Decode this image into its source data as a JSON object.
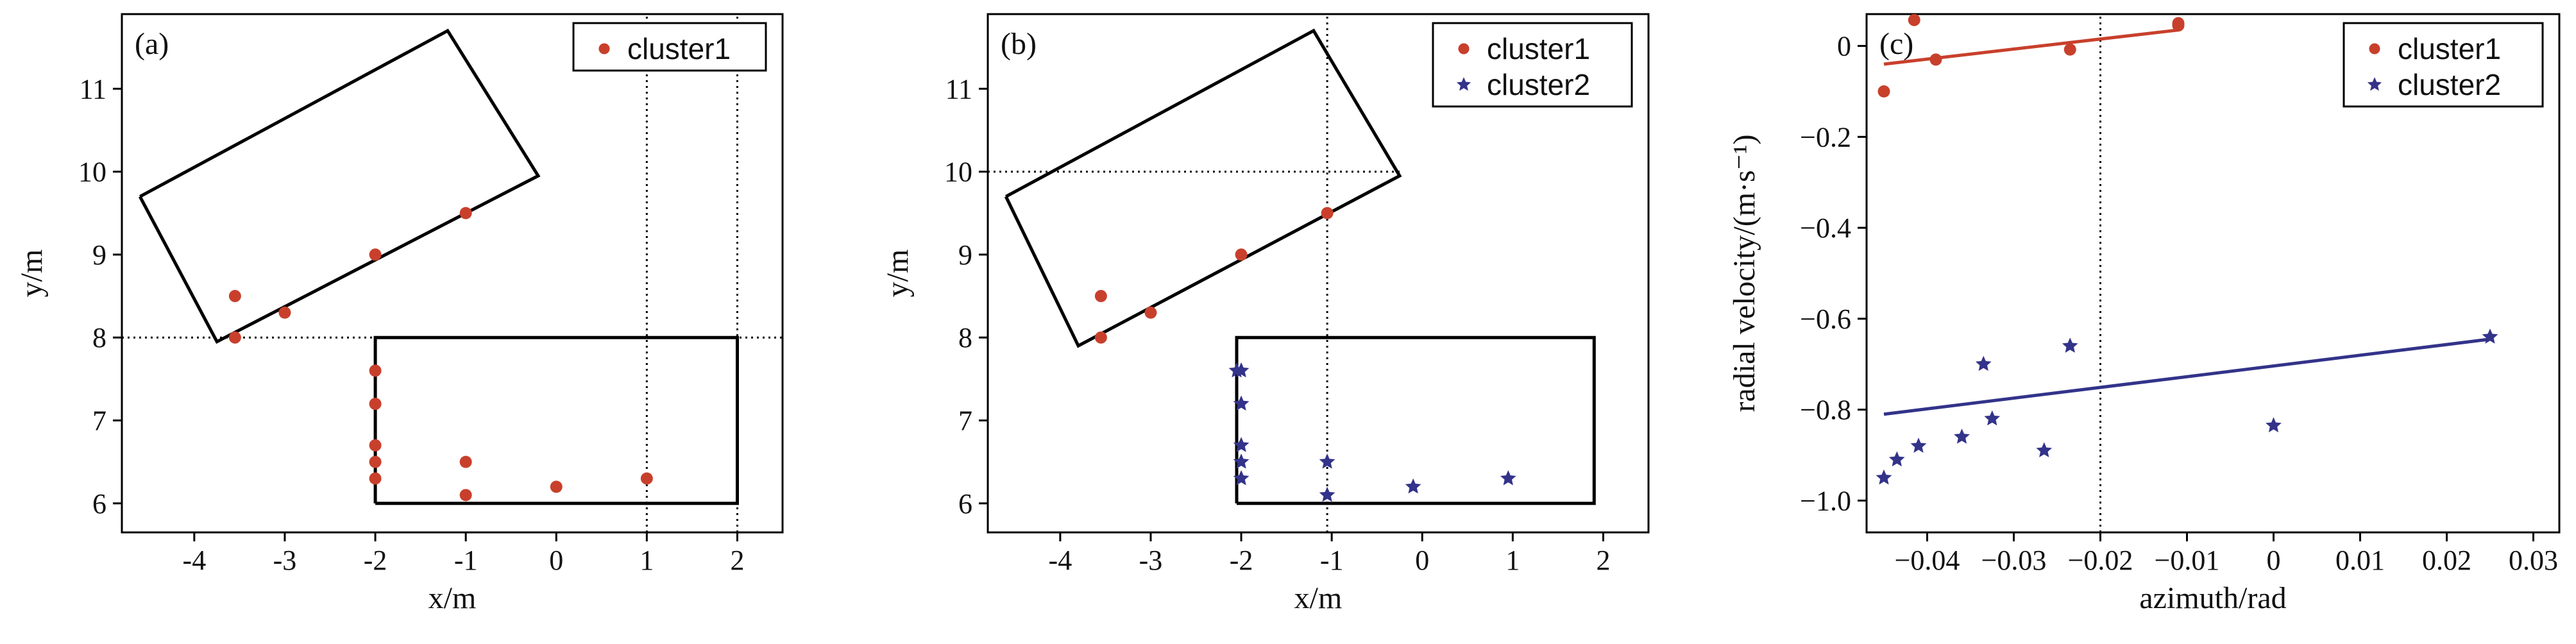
{
  "colors": {
    "cluster1": "#c8402c",
    "cluster2": "#33338a",
    "frame": "#000000",
    "background": "#ffffff"
  },
  "chart_data": [
    {
      "panel_label": "(a)",
      "type": "scatter",
      "xlabel": "x/m",
      "ylabel": "y/m",
      "xlim": [
        -4.8,
        2.5
      ],
      "ylim": [
        5.65,
        11.9
      ],
      "xticks": [
        -4,
        -3,
        -2,
        -1,
        0,
        1,
        2
      ],
      "yticks": [
        6,
        7,
        8,
        9,
        10,
        11
      ],
      "grid": false,
      "legend_position": "top-right",
      "series": [
        {
          "name": "cluster1",
          "color": "#c8402c",
          "marker": "circle",
          "points": [
            [
              -3.55,
              8.5
            ],
            [
              -3.55,
              8.0
            ],
            [
              -3.0,
              8.3
            ],
            [
              -2.0,
              9.0
            ],
            [
              -1.0,
              9.5
            ],
            [
              -2.0,
              7.6
            ],
            [
              -2.0,
              7.2
            ],
            [
              -2.0,
              6.7
            ],
            [
              -2.0,
              6.5
            ],
            [
              -2.0,
              6.3
            ],
            [
              -1.0,
              6.5
            ],
            [
              -1.0,
              6.1
            ],
            [
              0.0,
              6.2
            ],
            [
              1.0,
              6.3
            ]
          ]
        }
      ],
      "outlines": [
        [
          [
            -4.6,
            9.7
          ],
          [
            -1.2,
            11.7
          ],
          [
            -0.2,
            9.95
          ],
          [
            -3.75,
            7.95
          ],
          [
            -4.6,
            9.7
          ]
        ],
        [
          [
            -2.0,
            6.0
          ],
          [
            2.0,
            6.0
          ],
          [
            2.0,
            8.0
          ],
          [
            -2.0,
            8.0
          ],
          [
            -2.0,
            6.0
          ]
        ]
      ],
      "reference_lines": [
        {
          "orientation": "horizontal",
          "value": 8.0,
          "from": -4.8,
          "to": 2.5
        },
        {
          "orientation": "vertical",
          "value": 1.0,
          "from": 5.65,
          "to": 11.9
        },
        {
          "orientation": "vertical",
          "value": 2.0,
          "from": 5.65,
          "to": 11.9
        }
      ]
    },
    {
      "panel_label": "(b)",
      "type": "scatter",
      "xlabel": "x/m",
      "ylabel": "y/m",
      "xlim": [
        -4.8,
        2.5
      ],
      "ylim": [
        5.65,
        11.9
      ],
      "xticks": [
        -4,
        -3,
        -2,
        -1,
        0,
        1,
        2
      ],
      "yticks": [
        6,
        7,
        8,
        9,
        10,
        11
      ],
      "grid": false,
      "legend_position": "top-right",
      "series": [
        {
          "name": "cluster1",
          "color": "#c8402c",
          "marker": "circle",
          "points": [
            [
              -3.55,
              8.5
            ],
            [
              -3.55,
              8.0
            ],
            [
              -3.0,
              8.3
            ],
            [
              -2.0,
              9.0
            ],
            [
              -1.05,
              9.5
            ]
          ]
        },
        {
          "name": "cluster2",
          "color": "#33338a",
          "marker": "star",
          "points": [
            [
              -2.05,
              7.6
            ],
            [
              -2.0,
              7.6
            ],
            [
              -2.0,
              7.2
            ],
            [
              -2.0,
              6.7
            ],
            [
              -2.0,
              6.5
            ],
            [
              -2.0,
              6.3
            ],
            [
              -1.05,
              6.5
            ],
            [
              -1.05,
              6.1
            ],
            [
              -0.1,
              6.2
            ],
            [
              0.95,
              6.3
            ]
          ]
        }
      ],
      "outlines": [
        [
          [
            -4.6,
            9.7
          ],
          [
            -1.2,
            11.7
          ],
          [
            -0.25,
            9.95
          ],
          [
            -3.8,
            7.9
          ],
          [
            -4.6,
            9.7
          ]
        ],
        [
          [
            -2.05,
            6.0
          ],
          [
            1.9,
            6.0
          ],
          [
            1.9,
            8.0
          ],
          [
            -2.05,
            8.0
          ],
          [
            -2.05,
            6.0
          ]
        ]
      ],
      "reference_lines": [
        {
          "orientation": "horizontal",
          "value": 10.0,
          "from": -4.8,
          "to": -0.25
        },
        {
          "orientation": "vertical",
          "value": -1.05,
          "from": 5.65,
          "to": 11.9
        }
      ]
    },
    {
      "panel_label": "(c)",
      "type": "scatter",
      "xlabel": "azimuth/rad",
      "ylabel": "radial velocity/(m·s⁻¹)",
      "xlim": [
        -0.047,
        0.033
      ],
      "ylim": [
        -1.07,
        0.07
      ],
      "xticks": [
        -0.04,
        -0.03,
        -0.02,
        -0.01,
        0,
        0.01,
        0.02,
        0.03
      ],
      "xtick_labels": [
        "−0.04",
        "−0.03",
        "−0.02",
        "−0.01",
        "0",
        "0.01",
        "0.02",
        "0.03"
      ],
      "yticks": [
        0,
        -0.2,
        -0.4,
        -0.6,
        -0.8,
        -1.0
      ],
      "ytick_labels": [
        "0",
        "−0.2",
        "−0.4",
        "−0.6",
        "−0.8",
        "−1.0"
      ],
      "grid": false,
      "legend_position": "top-right",
      "series": [
        {
          "name": "cluster1",
          "color": "#c8402c",
          "marker": "circle",
          "points": [
            [
              -0.045,
              -0.1
            ],
            [
              -0.0415,
              0.057
            ],
            [
              -0.039,
              -0.03
            ],
            [
              -0.0235,
              -0.008
            ],
            [
              -0.011,
              0.045
            ],
            [
              -0.011,
              0.05
            ]
          ],
          "fit_line": [
            [
              -0.045,
              -0.04
            ],
            [
              -0.011,
              0.035
            ]
          ]
        },
        {
          "name": "cluster2",
          "color": "#33338a",
          "marker": "star",
          "points": [
            [
              -0.045,
              -0.95
            ],
            [
              -0.0435,
              -0.91
            ],
            [
              -0.041,
              -0.88
            ],
            [
              -0.036,
              -0.86
            ],
            [
              -0.0335,
              -0.7
            ],
            [
              -0.0325,
              -0.82
            ],
            [
              -0.0265,
              -0.89
            ],
            [
              -0.0235,
              -0.66
            ],
            [
              0.0,
              -0.835
            ],
            [
              0.025,
              -0.64
            ]
          ],
          "fit_line": [
            [
              -0.045,
              -0.81
            ],
            [
              0.025,
              -0.645
            ]
          ]
        }
      ],
      "reference_lines": [
        {
          "orientation": "vertical",
          "value": -0.02,
          "from": -1.07,
          "to": 0.07
        }
      ]
    }
  ]
}
